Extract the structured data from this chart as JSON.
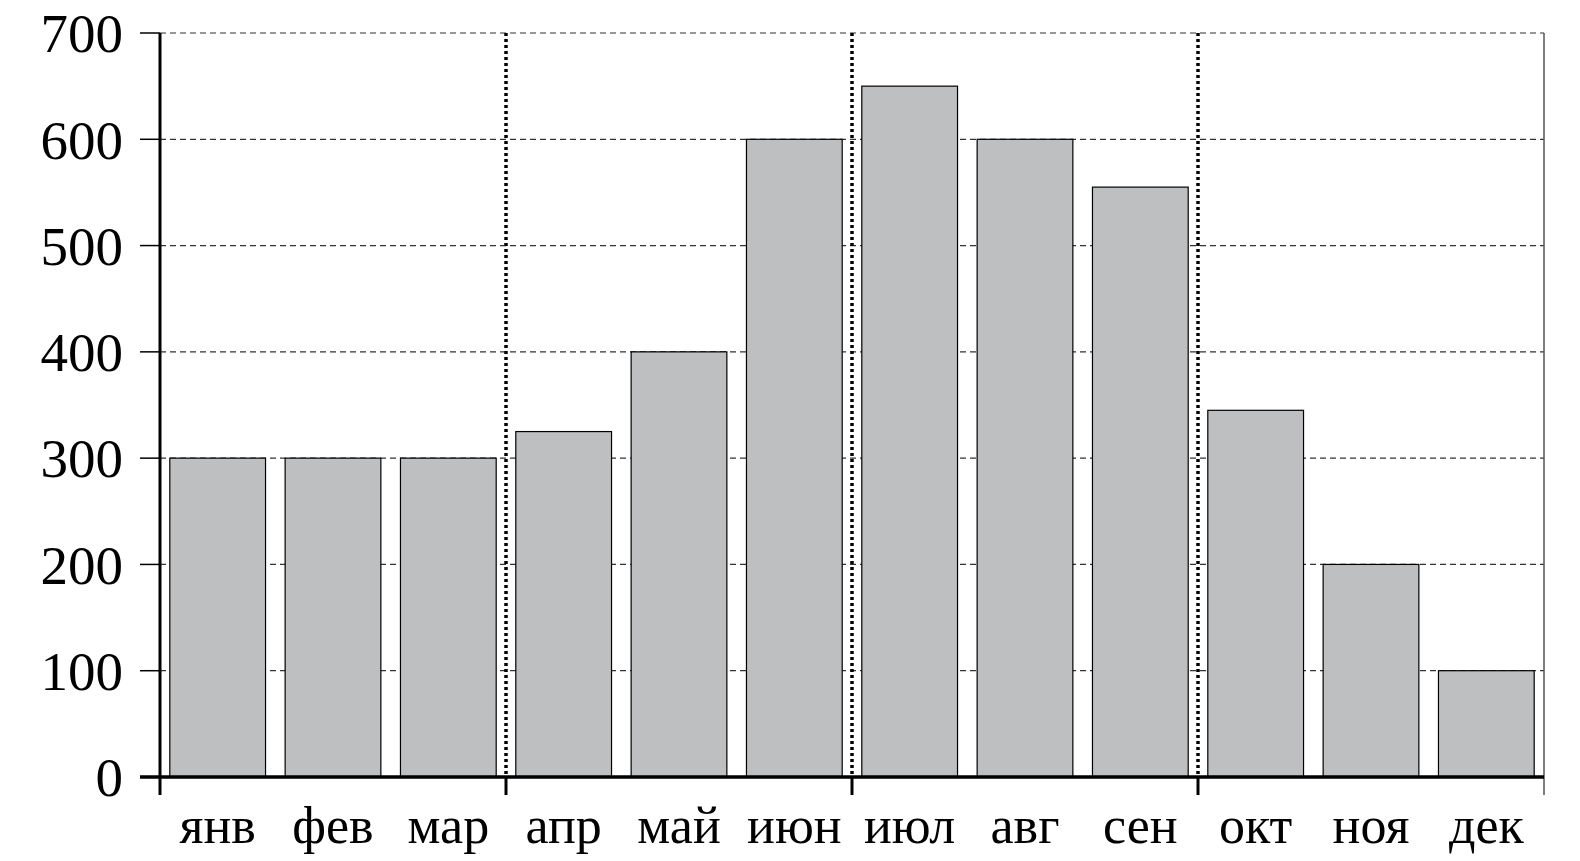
{
  "chart_data": {
    "type": "bar",
    "categories": [
      "янв",
      "фев",
      "мар",
      "апр",
      "май",
      "июн",
      "июл",
      "авг",
      "сен",
      "окт",
      "ноя",
      "дек"
    ],
    "values": [
      300,
      300,
      300,
      325,
      400,
      600,
      650,
      600,
      555,
      345,
      200,
      100
    ],
    "color": "#bebfc1",
    "ylim": [
      0,
      700
    ],
    "yticks": [
      0,
      100,
      200,
      300,
      400,
      500,
      600,
      700
    ],
    "grid": "y"
  }
}
